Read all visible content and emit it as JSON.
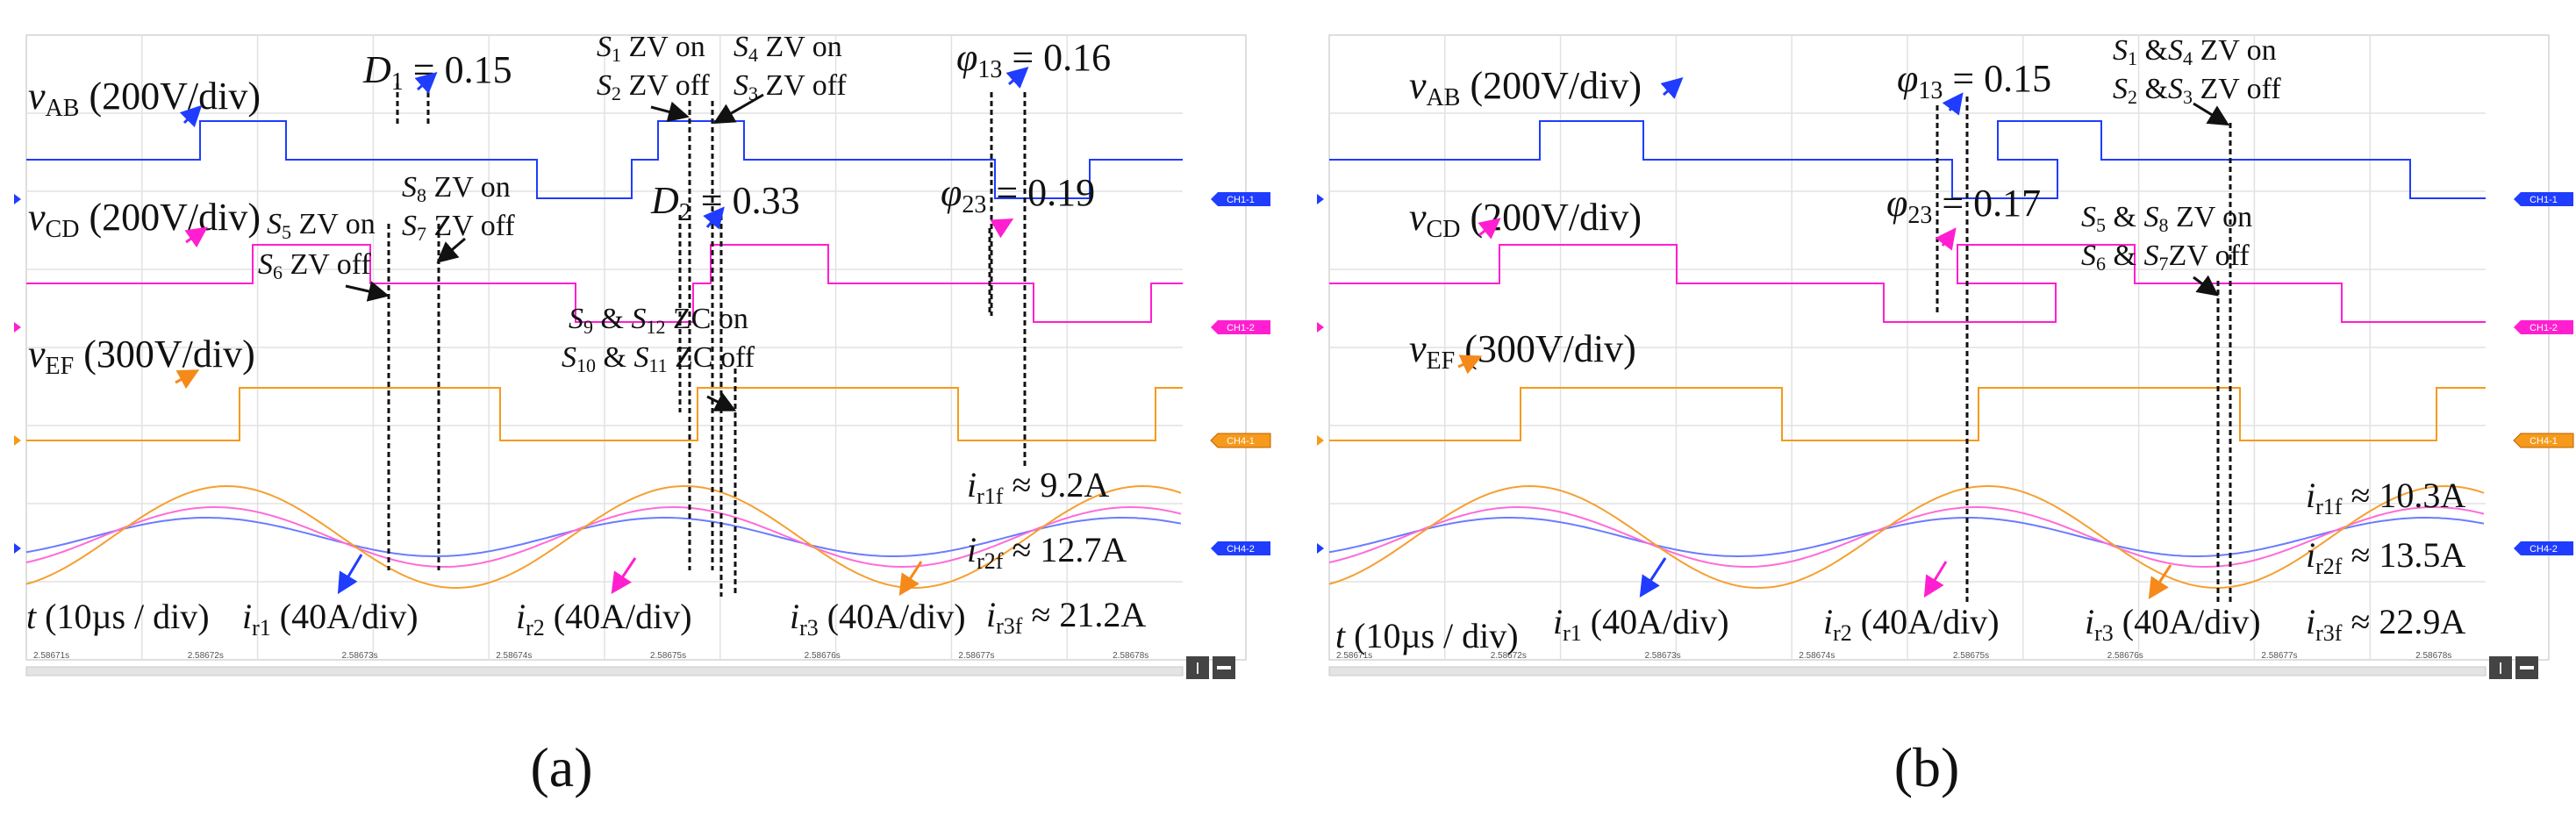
{
  "chart_data": [
    {
      "type": "line",
      "panel": "(a)",
      "x_unit": "µs",
      "time_scale": "t (10µs / div)",
      "time_ticks": [
        "2.58671s",
        "2.58672s",
        "2.58673s",
        "2.58674s",
        "2.58675s",
        "2.58676s",
        "2.58677s",
        "2.58678s"
      ],
      "channels": [
        {
          "name": "vAB",
          "label_main": "v",
          "label_sub": "AB",
          "scale": " (200V/div)",
          "color": "#1f3cff",
          "tag": "CH1-1"
        },
        {
          "name": "vCD",
          "label_main": "v",
          "label_sub": "CD",
          "scale": " (200V/div)",
          "color": "#ff1fd0",
          "tag": "CH1-2"
        },
        {
          "name": "vEF",
          "label_main": "v",
          "label_sub": "EF",
          "scale": " (300V/div)",
          "color": "#f59a1a",
          "tag": "CH4-1"
        },
        {
          "name": "currents",
          "tag": "CH4-2"
        }
      ],
      "currents": [
        {
          "name": "ir1",
          "label_main": "i",
          "label_sub": "r1",
          "scale": " (40A/div)",
          "color": "#6a7cff"
        },
        {
          "name": "ir2",
          "label_main": "i",
          "label_sub": "r2",
          "scale": " (40A/div)",
          "color": "#ff6bd8"
        },
        {
          "name": "ir3",
          "label_main": "i",
          "label_sub": "r3",
          "scale": " (40A/div)",
          "color": "#f5a030"
        }
      ],
      "rms": [
        {
          "main": "i",
          "sub": "r1f",
          "val": "≈ 9.2A"
        },
        {
          "main": "i",
          "sub": "r2f",
          "val": "≈ 12.7A"
        },
        {
          "main": "i",
          "sub": "r3f",
          "val": "≈ 21.2A"
        }
      ],
      "phase": {
        "D1": "0.15",
        "D2": "0.33",
        "phi13": "0.16",
        "phi23": "0.19"
      },
      "annotations": {
        "d1": {
          "sym": "D",
          "sub": "1",
          "val": " = 0.15"
        },
        "d2": {
          "sym": "D",
          "sub": "2",
          "val": " = 0.33"
        },
        "phi13": {
          "sym": "φ",
          "sub": "13",
          "val": " = 0.16"
        },
        "phi23": {
          "sym": "φ",
          "sub": "23",
          "val": " = 0.19"
        },
        "s1": {
          "sym": "S",
          "sub": "1",
          "txt": " ZV on"
        },
        "s2": {
          "sym": "S",
          "sub": "2",
          "txt": " ZV off"
        },
        "s4": {
          "sym": "S",
          "sub": "4",
          "txt": " ZV on"
        },
        "s3": {
          "sym": "S",
          "sub": "3",
          "txt": " ZV off"
        },
        "s8": {
          "sym": "S",
          "sub": "8",
          "txt": " ZV on"
        },
        "s7": {
          "sym": "S",
          "sub": "7",
          "txt": " ZV off"
        },
        "s5": {
          "sym": "S",
          "sub": "5",
          "txt": " ZV on"
        },
        "s6": {
          "sym": "S",
          "sub": "6",
          "txt": " ZV off"
        },
        "s9": {
          "sym1": "S",
          "sub1": "9",
          "amp": " & ",
          "sym2": "S",
          "sub2": "12",
          "txt": " ZC on"
        },
        "s10": {
          "sym1": "S",
          "sub1": "10",
          "amp": " & ",
          "sym2": "S",
          "sub2": "11",
          "txt": " ZC off"
        }
      },
      "caption": "(a)"
    },
    {
      "type": "line",
      "panel": "(b)",
      "x_unit": "µs",
      "time_scale": "t (10µs / div)",
      "time_ticks": [
        "2.58671s",
        "2.58672s",
        "2.58673s",
        "2.58674s",
        "2.58675s",
        "2.58676s",
        "2.58677s",
        "2.58678s"
      ],
      "channels": [
        {
          "name": "vAB",
          "label_main": "v",
          "label_sub": "AB",
          "scale": " (200V/div)",
          "color": "#1f3cff",
          "tag": "CH1-1"
        },
        {
          "name": "vCD",
          "label_main": "v",
          "label_sub": "CD",
          "scale": " (200V/div)",
          "color": "#ff1fd0",
          "tag": "CH1-2"
        },
        {
          "name": "vEF",
          "label_main": "v",
          "label_sub": "EF",
          "scale": " (300V/div)",
          "color": "#f59a1a",
          "tag": "CH4-1"
        },
        {
          "name": "currents",
          "tag": "CH4-2"
        }
      ],
      "currents": [
        {
          "name": "ir1",
          "label_main": "i",
          "label_sub": "r1",
          "scale": " (40A/div)",
          "color": "#6a7cff"
        },
        {
          "name": "ir2",
          "label_main": "i",
          "label_sub": "r2",
          "scale": " (40A/div)",
          "color": "#ff6bd8"
        },
        {
          "name": "ir3",
          "label_main": "i",
          "label_sub": "r3",
          "scale": " (40A/div)",
          "color": "#f5a030"
        }
      ],
      "rms": [
        {
          "main": "i",
          "sub": "r1f",
          "val": "≈ 10.3A"
        },
        {
          "main": "i",
          "sub": "r2f",
          "val": "≈ 13.5A"
        },
        {
          "main": "i",
          "sub": "r3f",
          "val": "≈ 22.9A"
        }
      ],
      "phase": {
        "phi13": "0.15",
        "phi23": "0.17"
      },
      "annotations": {
        "phi13": {
          "sym": "φ",
          "sub": "13",
          "val": " = 0.15"
        },
        "phi23": {
          "sym": "φ",
          "sub": "23",
          "val": " = 0.17"
        },
        "s14": {
          "sym1": "S",
          "sub1": "1",
          "amp": " &",
          "sym2": "S",
          "sub2": "4",
          "txt": " ZV on"
        },
        "s23": {
          "sym1": "S",
          "sub1": "2",
          "amp": " &",
          "sym2": "S",
          "sub2": "3",
          "txt": " ZV off"
        },
        "s58": {
          "sym1": "S",
          "sub1": "5",
          "amp": " & ",
          "sym2": "S",
          "sub2": "8",
          "txt": " ZV on"
        },
        "s67": {
          "sym1": "S",
          "sub1": "6",
          "amp": " & ",
          "sym2": "S",
          "sub2": "7",
          "txt": "ZV off"
        }
      },
      "caption": "(b)"
    }
  ]
}
